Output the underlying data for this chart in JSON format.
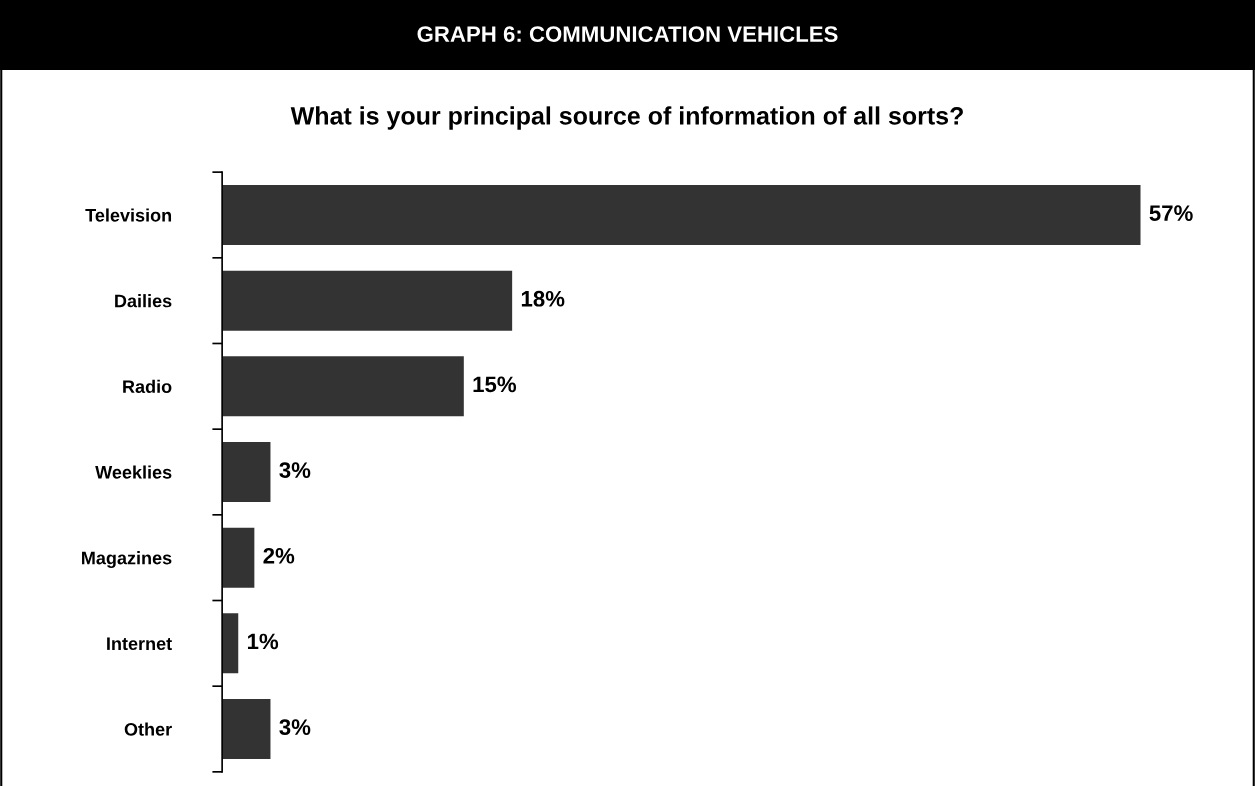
{
  "chart_data": {
    "type": "bar",
    "orientation": "horizontal",
    "title": "GRAPH 6: COMMUNICATION VEHICLES",
    "subtitle": "What is your principal source of information of all sorts?",
    "categories": [
      "Television",
      "Dailies",
      "Radio",
      "Weeklies",
      "Magazines",
      "Internet",
      "Other"
    ],
    "values": [
      57,
      18,
      15,
      3,
      2,
      1,
      3
    ],
    "color": "#333333",
    "value_labels": [
      "57%",
      "18%",
      "15%",
      "3%",
      "2%",
      "1%",
      "3%"
    ],
    "grid": false,
    "legend": false
  }
}
